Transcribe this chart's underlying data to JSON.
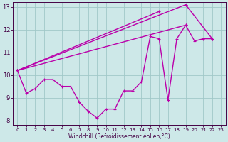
{
  "xlabel": "Windchill (Refroidissement éolien,°C)",
  "background_color": "#cde8e8",
  "grid_color": "#a0c8c8",
  "line_color": "#bb00aa",
  "spine_color": "#440044",
  "xlim": [
    -0.5,
    23.5
  ],
  "ylim": [
    7.8,
    13.2
  ],
  "yticks": [
    8,
    9,
    10,
    11,
    12,
    13
  ],
  "xticks": [
    0,
    1,
    2,
    3,
    4,
    5,
    6,
    7,
    8,
    9,
    10,
    11,
    12,
    13,
    14,
    15,
    16,
    17,
    18,
    19,
    20,
    21,
    22,
    23
  ],
  "main_line_x": [
    0,
    1,
    2,
    3,
    4,
    5,
    6,
    7,
    8,
    9,
    10,
    11,
    12,
    13,
    14,
    15,
    16,
    17,
    18,
    19,
    20,
    21,
    22
  ],
  "main_line_y": [
    10.2,
    9.2,
    9.4,
    9.8,
    9.8,
    9.5,
    9.5,
    8.8,
    8.4,
    8.1,
    8.5,
    8.5,
    9.3,
    9.3,
    9.7,
    11.7,
    11.6,
    8.9,
    11.6,
    12.2,
    11.5,
    11.6,
    11.6
  ],
  "straight_lines": [
    {
      "x": [
        0,
        19
      ],
      "y": [
        10.2,
        12.2
      ]
    },
    {
      "x": [
        0,
        16
      ],
      "y": [
        10.2,
        12.8
      ]
    },
    {
      "x": [
        0,
        19
      ],
      "y": [
        10.2,
        13.1
      ]
    },
    {
      "x": [
        19,
        22
      ],
      "y": [
        13.1,
        11.6
      ]
    }
  ],
  "lw": 1.0,
  "ms": 3.5
}
